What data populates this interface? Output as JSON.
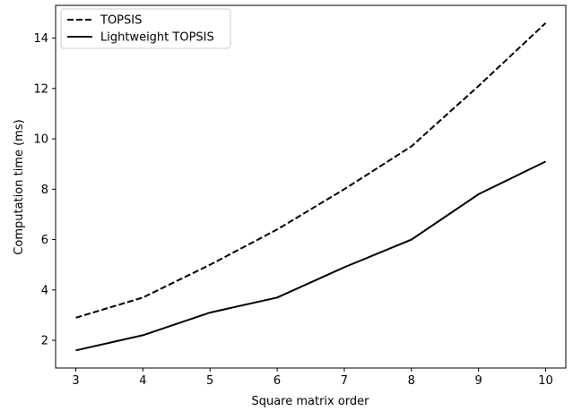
{
  "chart_data": {
    "type": "line",
    "title": "",
    "xlabel": "Square matrix order",
    "ylabel": "Computation time (ms)",
    "x": [
      3,
      4,
      5,
      6,
      7,
      8,
      9,
      10
    ],
    "xlim": [
      2.7,
      10.3
    ],
    "ylim": [
      0.9,
      15.3
    ],
    "xticks": [
      "3",
      "4",
      "5",
      "6",
      "7",
      "8",
      "9",
      "10"
    ],
    "yticks": [
      "2",
      "4",
      "6",
      "8",
      "10",
      "12",
      "14"
    ],
    "grid": false,
    "legend": "top-left",
    "series": [
      {
        "name": "TOPSIS",
        "style": "dashed",
        "color": "#000000",
        "values": [
          2.9,
          3.7,
          5.0,
          6.4,
          8.0,
          9.7,
          12.1,
          14.6
        ]
      },
      {
        "name": "Lightweight TOPSIS",
        "style": "solid",
        "color": "#000000",
        "values": [
          1.6,
          2.2,
          3.1,
          3.7,
          4.9,
          6.0,
          7.8,
          9.1
        ]
      }
    ]
  }
}
